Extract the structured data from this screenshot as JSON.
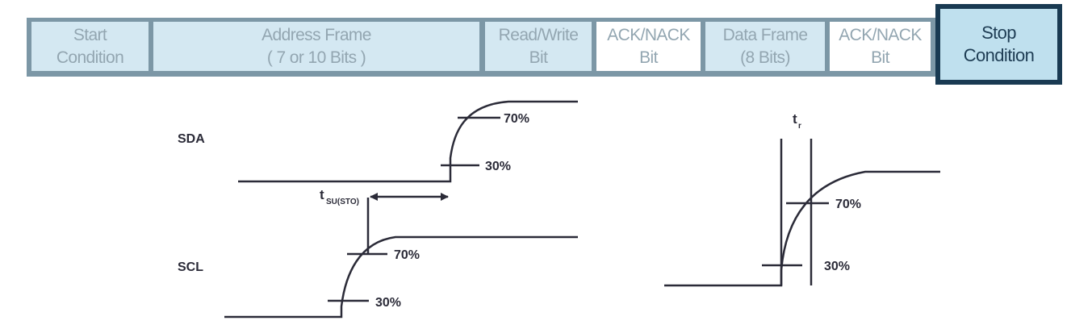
{
  "frame_bar": {
    "cells": [
      {
        "line1": "Start",
        "line2": "Condition"
      },
      {
        "line1": "Address Frame",
        "line2": "( 7 or 10 Bits )"
      },
      {
        "line1": "Read/Write",
        "line2": "Bit"
      },
      {
        "line1": "ACK/NACK",
        "line2": "Bit"
      },
      {
        "line1": "Data Frame",
        "line2": "(8 Bits)"
      },
      {
        "line1": "ACK/NACK",
        "line2": "Bit"
      }
    ],
    "stop": {
      "line1": "Stop",
      "line2": "Condition"
    }
  },
  "setup_diagram": {
    "sda_label": "SDA",
    "scl_label": "SCL",
    "tsu_main": "t",
    "tsu_sub": "SU(STO)",
    "sda_pct_high": "70%",
    "sda_pct_low": "30%",
    "scl_pct_high": "70%",
    "scl_pct_low": "30%"
  },
  "rise_diagram": {
    "tr_main": "t",
    "tr_sub": "r",
    "pct_high": "70%",
    "pct_low": "30%"
  },
  "colors": {
    "frame_border": "#7c97a6",
    "cell_blue": "#d4e8f2",
    "cell_text": "#93a6b1",
    "stop_border": "#193a52",
    "stop_fill": "#bfe0ee",
    "stop_text": "#1e3d54",
    "line": "#2b2b38"
  }
}
